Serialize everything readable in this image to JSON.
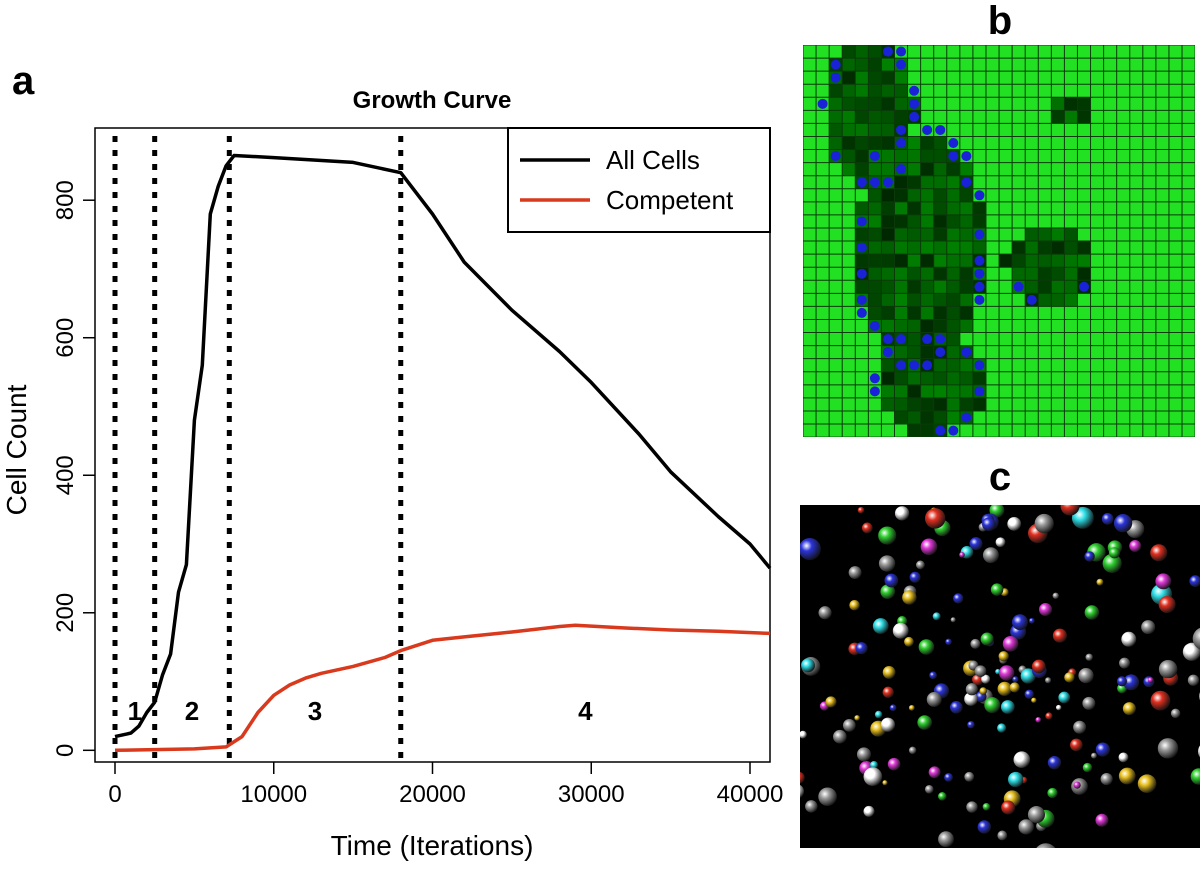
{
  "panel_labels": [
    "a",
    "b",
    "c"
  ],
  "chart_data": {
    "type": "line",
    "title": "Growth Curve",
    "x_label": "Time (Iterations)",
    "y_label": "Cell Count",
    "xlim": [
      -1260,
      41260
    ],
    "ylim": [
      -17,
      905
    ],
    "xticks": [
      0,
      10000,
      20000,
      30000,
      40000
    ],
    "yticks": [
      0,
      200,
      400,
      600,
      800
    ],
    "legend": "top-right",
    "grid": false,
    "vlines": [
      0,
      2500,
      7200,
      18000
    ],
    "annotations": [
      "1",
      "2",
      "3",
      "4"
    ],
    "series": [
      {
        "name": "All Cells",
        "color": "#000000",
        "x": [
          0,
          1000,
          1500,
          2000,
          2500,
          3000,
          3500,
          4000,
          4500,
          5000,
          5500,
          6000,
          6500,
          7000,
          7500,
          10000,
          15000,
          18000,
          20000,
          22000,
          25000,
          28000,
          30000,
          33000,
          35000,
          38000,
          40000,
          41260
        ],
        "values": [
          20,
          25,
          35,
          55,
          70,
          110,
          140,
          230,
          270,
          480,
          560,
          780,
          820,
          850,
          865,
          862,
          855,
          840,
          780,
          710,
          640,
          580,
          535,
          460,
          405,
          340,
          300,
          265
        ]
      },
      {
        "name": "Competent",
        "color": "#d93a1e",
        "x": [
          0,
          5000,
          7000,
          8000,
          9000,
          10000,
          11000,
          12000,
          13000,
          15000,
          17000,
          18000,
          20000,
          22000,
          25000,
          28000,
          29000,
          32000,
          35000,
          38000,
          41260
        ],
        "values": [
          0,
          2,
          5,
          20,
          55,
          80,
          95,
          105,
          112,
          122,
          135,
          145,
          160,
          165,
          172,
          180,
          182,
          178,
          175,
          173,
          170
        ]
      }
    ]
  }
}
